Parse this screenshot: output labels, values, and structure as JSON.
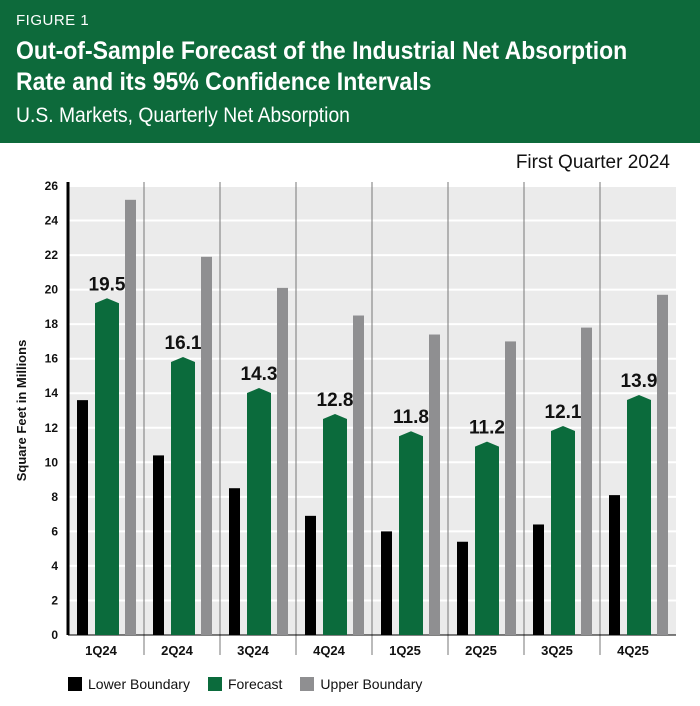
{
  "header": {
    "figure_label": "FIGURE 1",
    "title": "Out-of-Sample Forecast of the Industrial Net Absorption Rate and its 95% Confidence Intervals",
    "subtitle": "U.S. Markets, Quarterly Net Absorption"
  },
  "period": "First Quarter 2024",
  "colors": {
    "lower": "#000000",
    "forecast": "#0b6b3c",
    "upper": "#8f8f91",
    "plot_bg": "#ebebeb"
  },
  "chart_data": {
    "type": "bar",
    "title": "Out-of-Sample Forecast of the Industrial Net Absorption Rate and its 95% Confidence Intervals",
    "ylabel": "Square Feet in Millions",
    "xlabel": "",
    "ylim": [
      0,
      26
    ],
    "yticks": [
      "0",
      "2",
      "4",
      "6",
      "8",
      "10",
      "12",
      "14",
      "16",
      "18",
      "20",
      "22",
      "24",
      "26"
    ],
    "categories": [
      "1Q24",
      "2Q24",
      "3Q24",
      "4Q24",
      "1Q25",
      "2Q25",
      "3Q25",
      "4Q25"
    ],
    "series": [
      {
        "name": "Lower Boundary",
        "values": [
          13.6,
          10.4,
          8.5,
          6.9,
          6.0,
          5.4,
          6.4,
          8.1
        ]
      },
      {
        "name": "Forecast",
        "values": [
          19.5,
          16.1,
          14.3,
          12.8,
          11.8,
          11.2,
          12.1,
          13.9
        ],
        "labels": [
          "19.5",
          "16.1",
          "14.3",
          "12.8",
          "11.8",
          "11.2",
          "12.1",
          "13.9"
        ]
      },
      {
        "name": "Upper Boundary",
        "values": [
          25.2,
          21.9,
          20.1,
          18.5,
          17.4,
          17.0,
          17.8,
          19.7
        ]
      }
    ],
    "legend": "bottom-left",
    "grid": true
  }
}
